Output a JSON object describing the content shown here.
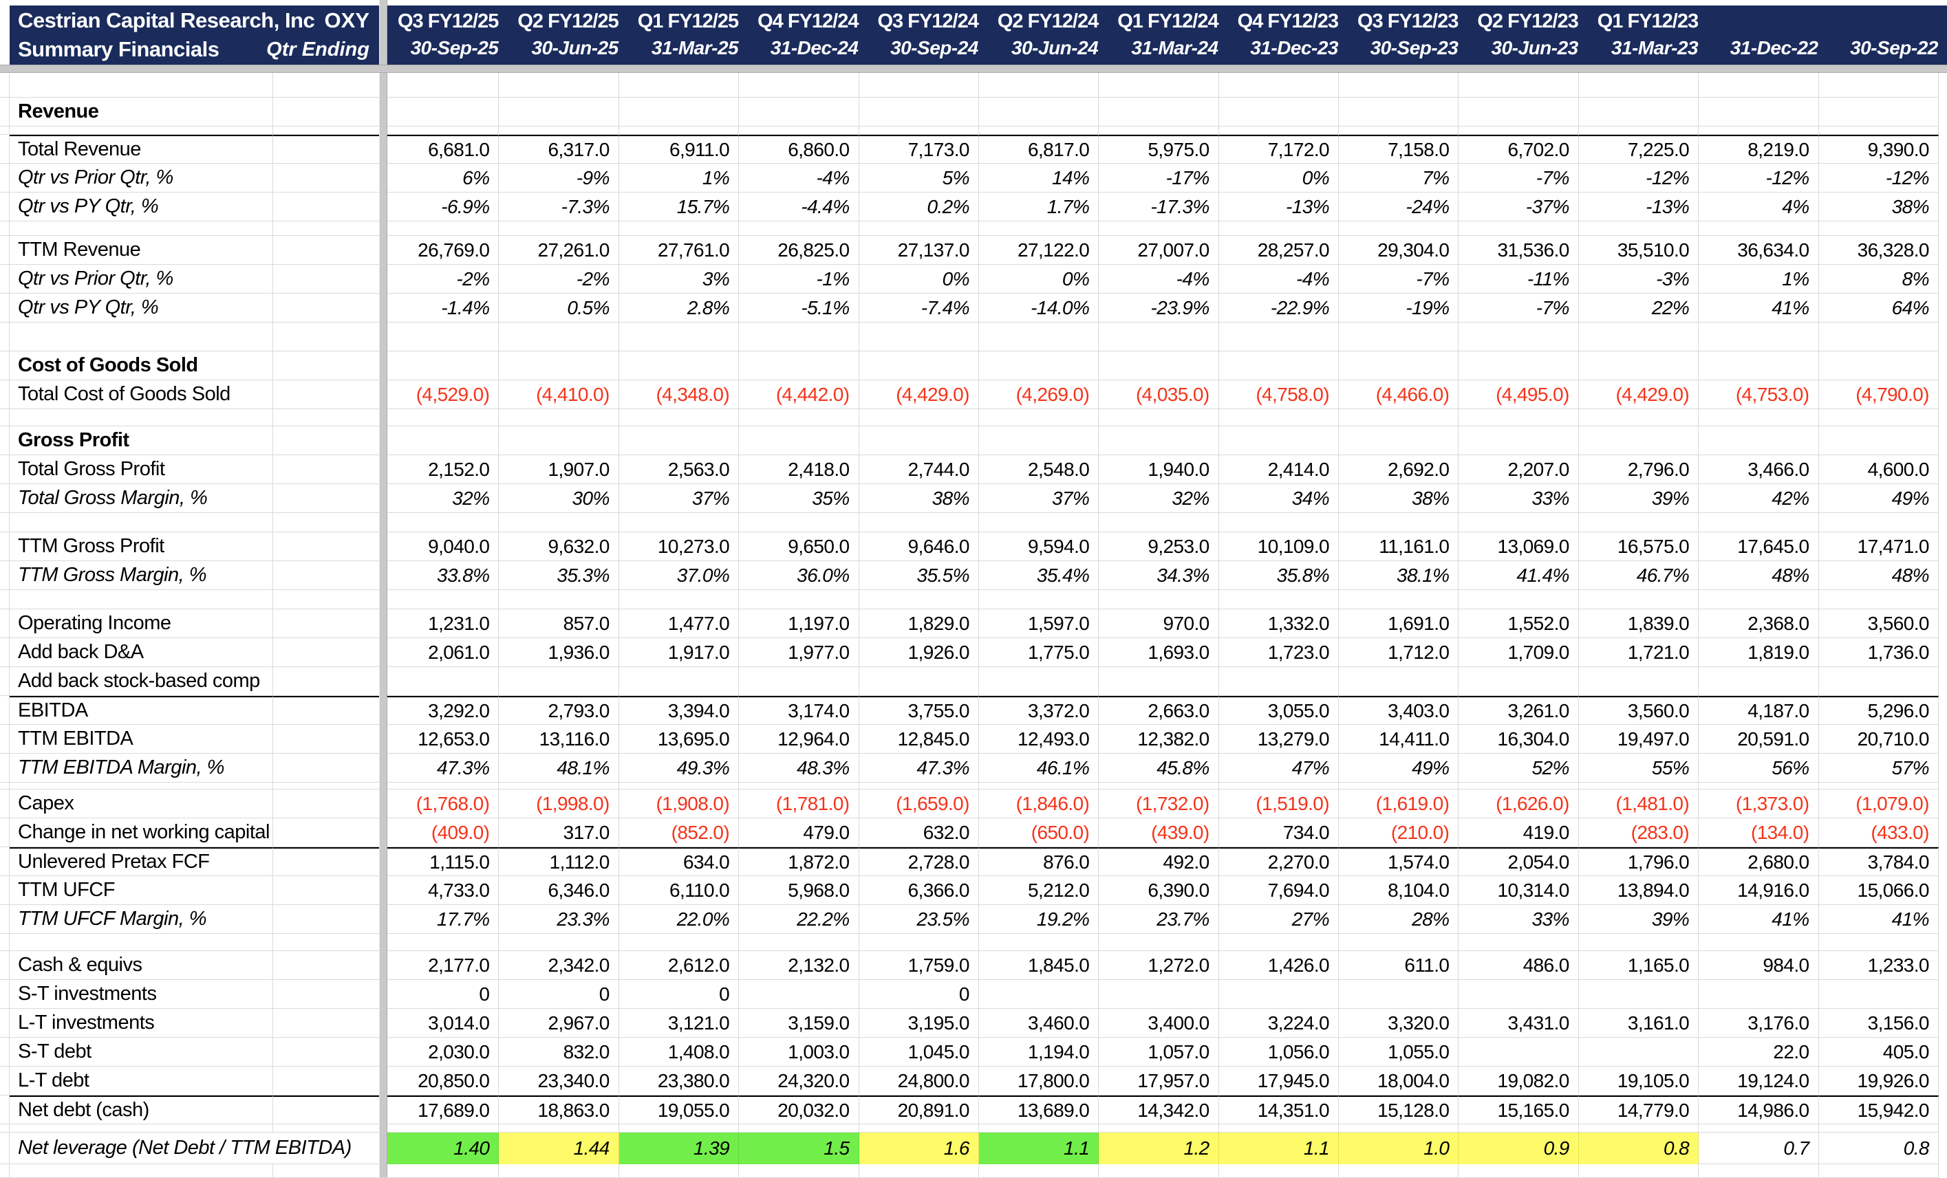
{
  "header": {
    "title": "Cestrian Capital Research, Inc",
    "subtitle": "Summary Financials",
    "ticker": "OXY",
    "qtr_ending_label": "Qtr Ending",
    "columns": [
      {
        "q": "Q3 FY12/25",
        "date": "30-Sep-25"
      },
      {
        "q": "Q2 FY12/25",
        "date": "30-Jun-25"
      },
      {
        "q": "Q1 FY12/25",
        "date": "31-Mar-25"
      },
      {
        "q": "Q4 FY12/24",
        "date": "31-Dec-24"
      },
      {
        "q": "Q3 FY12/24",
        "date": "30-Sep-24"
      },
      {
        "q": "Q2 FY12/24",
        "date": "30-Jun-24"
      },
      {
        "q": "Q1 FY12/24",
        "date": "31-Mar-24"
      },
      {
        "q": "Q4 FY12/23",
        "date": "31-Dec-23"
      },
      {
        "q": "Q3 FY12/23",
        "date": "30-Sep-23"
      },
      {
        "q": "Q2 FY12/23",
        "date": "30-Jun-23"
      },
      {
        "q": "Q1 FY12/23",
        "date": "31-Mar-23"
      },
      {
        "q": "",
        "date": "31-Dec-22"
      },
      {
        "q": "",
        "date": "30-Sep-22"
      }
    ]
  },
  "colors": {
    "header_bg": "#1A2B5C",
    "negative_red": "#F5331A",
    "fill_green": "#72EE4A",
    "fill_yellow": "#FDFB67",
    "gridline": "#DADADA",
    "pane_band": "#C9C9C9"
  },
  "rows": [
    {
      "type": "spacer",
      "h": 36
    },
    {
      "type": "section",
      "label": "Revenue"
    },
    {
      "type": "spacer",
      "h": 12
    },
    {
      "type": "data",
      "label": "Total Revenue",
      "bt": true,
      "values": [
        "6,681.0",
        "6,317.0",
        "6,911.0",
        "6,860.0",
        "7,173.0",
        "6,817.0",
        "5,975.0",
        "7,172.0",
        "7,158.0",
        "6,702.0",
        "7,225.0",
        "8,219.0",
        "9,390.0"
      ]
    },
    {
      "type": "data",
      "label": "Qtr vs Prior Qtr, %",
      "italic": true,
      "values": [
        "6%",
        "-9%",
        "1%",
        "-4%",
        "5%",
        "14%",
        "-17%",
        "0%",
        "7%",
        "-7%",
        "-12%",
        "-12%",
        "-12%"
      ]
    },
    {
      "type": "data",
      "label": "Qtr vs PY Qtr, %",
      "italic": true,
      "values": [
        "-6.9%",
        "-7.3%",
        "15.7%",
        "-4.4%",
        "0.2%",
        "1.7%",
        "-17.3%",
        "-13%",
        "-24%",
        "-37%",
        "-13%",
        "4%",
        "38%"
      ]
    },
    {
      "type": "spacer",
      "h": 21
    },
    {
      "type": "data",
      "label": "TTM Revenue",
      "values": [
        "26,769.0",
        "27,261.0",
        "27,761.0",
        "26,825.0",
        "27,137.0",
        "27,122.0",
        "27,007.0",
        "28,257.0",
        "29,304.0",
        "31,536.0",
        "35,510.0",
        "36,634.0",
        "36,328.0"
      ]
    },
    {
      "type": "data",
      "label": "Qtr vs Prior Qtr, %",
      "italic": true,
      "values": [
        "-2%",
        "-2%",
        "3%",
        "-1%",
        "0%",
        "0%",
        "-4%",
        "-4%",
        "-7%",
        "-11%",
        "-3%",
        "1%",
        "8%"
      ]
    },
    {
      "type": "data",
      "label": "Qtr vs PY Qtr, %",
      "italic": true,
      "values": [
        "-1.4%",
        "0.5%",
        "2.8%",
        "-5.1%",
        "-7.4%",
        "-14.0%",
        "-23.9%",
        "-22.9%",
        "-19%",
        "-7%",
        "22%",
        "41%",
        "64%"
      ]
    },
    {
      "type": "spacer",
      "h": 42
    },
    {
      "type": "section",
      "label": "Cost of Goods Sold"
    },
    {
      "type": "data",
      "label": "Total Cost of Goods Sold",
      "values": [
        "(4,529.0)",
        "(4,410.0)",
        "(4,348.0)",
        "(4,442.0)",
        "(4,429.0)",
        "(4,269.0)",
        "(4,035.0)",
        "(4,758.0)",
        "(4,466.0)",
        "(4,495.0)",
        "(4,429.0)",
        "(4,753.0)",
        "(4,790.0)"
      ]
    },
    {
      "type": "spacer",
      "h": 25
    },
    {
      "type": "section",
      "label": "Gross Profit"
    },
    {
      "type": "data",
      "label": "Total Gross Profit",
      "values": [
        "2,152.0",
        "1,907.0",
        "2,563.0",
        "2,418.0",
        "2,744.0",
        "2,548.0",
        "1,940.0",
        "2,414.0",
        "2,692.0",
        "2,207.0",
        "2,796.0",
        "3,466.0",
        "4,600.0"
      ]
    },
    {
      "type": "data",
      "label": "Total Gross Margin, %",
      "italic": true,
      "values": [
        "32%",
        "30%",
        "37%",
        "35%",
        "38%",
        "37%",
        "32%",
        "34%",
        "38%",
        "33%",
        "39%",
        "42%",
        "49%"
      ]
    },
    {
      "type": "spacer",
      "h": 28
    },
    {
      "type": "data",
      "label": "TTM Gross Profit",
      "values": [
        "9,040.0",
        "9,632.0",
        "10,273.0",
        "9,650.0",
        "9,646.0",
        "9,594.0",
        "9,253.0",
        "10,109.0",
        "11,161.0",
        "13,069.0",
        "16,575.0",
        "17,645.0",
        "17,471.0"
      ]
    },
    {
      "type": "data",
      "label": "TTM Gross Margin, %",
      "italic": true,
      "values": [
        "33.8%",
        "35.3%",
        "37.0%",
        "36.0%",
        "35.5%",
        "35.4%",
        "34.3%",
        "35.8%",
        "38.1%",
        "41.4%",
        "46.7%",
        "48%",
        "48%"
      ]
    },
    {
      "type": "spacer",
      "h": 28
    },
    {
      "type": "data",
      "label": "Operating Income",
      "values": [
        "1,231.0",
        "857.0",
        "1,477.0",
        "1,197.0",
        "1,829.0",
        "1,597.0",
        "970.0",
        "1,332.0",
        "1,691.0",
        "1,552.0",
        "1,839.0",
        "2,368.0",
        "3,560.0"
      ]
    },
    {
      "type": "data",
      "label": "Add back D&A",
      "values": [
        "2,061.0",
        "1,936.0",
        "1,917.0",
        "1,977.0",
        "1,926.0",
        "1,775.0",
        "1,693.0",
        "1,723.0",
        "1,712.0",
        "1,709.0",
        "1,721.0",
        "1,819.0",
        "1,736.0"
      ]
    },
    {
      "type": "data",
      "label": "Add back stock-based comp",
      "values": [
        "",
        "",
        "",
        "",
        "",
        "",
        "",
        "",
        "",
        "",
        "",
        "",
        ""
      ]
    },
    {
      "type": "data",
      "label": "EBITDA",
      "bt": true,
      "values": [
        "3,292.0",
        "2,793.0",
        "3,394.0",
        "3,174.0",
        "3,755.0",
        "3,372.0",
        "2,663.0",
        "3,055.0",
        "3,403.0",
        "3,261.0",
        "3,560.0",
        "4,187.0",
        "5,296.0"
      ]
    },
    {
      "type": "data",
      "label": "TTM EBITDA",
      "values": [
        "12,653.0",
        "13,116.0",
        "13,695.0",
        "12,964.0",
        "12,845.0",
        "12,493.0",
        "12,382.0",
        "13,279.0",
        "14,411.0",
        "16,304.0",
        "19,497.0",
        "20,591.0",
        "20,710.0"
      ]
    },
    {
      "type": "data",
      "label": "TTM EBITDA Margin, %",
      "italic": true,
      "values": [
        "47.3%",
        "48.1%",
        "49.3%",
        "48.3%",
        "47.3%",
        "46.1%",
        "45.8%",
        "47%",
        "49%",
        "52%",
        "55%",
        "56%",
        "57%"
      ]
    },
    {
      "type": "spacer",
      "h": 10
    },
    {
      "type": "data",
      "label": "Capex",
      "values": [
        "(1,768.0)",
        "(1,998.0)",
        "(1,908.0)",
        "(1,781.0)",
        "(1,659.0)",
        "(1,846.0)",
        "(1,732.0)",
        "(1,519.0)",
        "(1,619.0)",
        "(1,626.0)",
        "(1,481.0)",
        "(1,373.0)",
        "(1,079.0)"
      ]
    },
    {
      "type": "data",
      "label": "Change in net working capital",
      "values": [
        "(409.0)",
        "317.0",
        "(852.0)",
        "479.0",
        "632.0",
        "(650.0)",
        "(439.0)",
        "734.0",
        "(210.0)",
        "419.0",
        "(283.0)",
        "(134.0)",
        "(433.0)"
      ]
    },
    {
      "type": "data",
      "label": "Unlevered Pretax FCF",
      "bt": true,
      "values": [
        "1,115.0",
        "1,112.0",
        "634.0",
        "1,872.0",
        "2,728.0",
        "876.0",
        "492.0",
        "2,270.0",
        "1,574.0",
        "2,054.0",
        "1,796.0",
        "2,680.0",
        "3,784.0"
      ]
    },
    {
      "type": "data",
      "label": "TTM UFCF",
      "values": [
        "4,733.0",
        "6,346.0",
        "6,110.0",
        "5,968.0",
        "6,366.0",
        "5,212.0",
        "6,390.0",
        "7,694.0",
        "8,104.0",
        "10,314.0",
        "13,894.0",
        "14,916.0",
        "15,066.0"
      ]
    },
    {
      "type": "data",
      "label": "TTM UFCF Margin, %",
      "italic": true,
      "values": [
        "17.7%",
        "23.3%",
        "22.0%",
        "22.2%",
        "23.5%",
        "19.2%",
        "23.7%",
        "27%",
        "28%",
        "33%",
        "39%",
        "41%",
        "41%"
      ]
    },
    {
      "type": "spacer",
      "h": 25
    },
    {
      "type": "data",
      "label": "Cash & equivs",
      "values": [
        "2,177.0",
        "2,342.0",
        "2,612.0",
        "2,132.0",
        "1,759.0",
        "1,845.0",
        "1,272.0",
        "1,426.0",
        "611.0",
        "486.0",
        "1,165.0",
        "984.0",
        "1,233.0"
      ]
    },
    {
      "type": "data",
      "label": "S-T investments",
      "values": [
        "0",
        "0",
        "0",
        "",
        "0",
        "",
        "",
        "",
        "",
        "",
        "",
        "",
        ""
      ]
    },
    {
      "type": "data",
      "label": "L-T investments",
      "values": [
        "3,014.0",
        "2,967.0",
        "3,121.0",
        "3,159.0",
        "3,195.0",
        "3,460.0",
        "3,400.0",
        "3,224.0",
        "3,320.0",
        "3,431.0",
        "3,161.0",
        "3,176.0",
        "3,156.0"
      ]
    },
    {
      "type": "data",
      "label": "S-T debt",
      "values": [
        "2,030.0",
        "832.0",
        "1,408.0",
        "1,003.0",
        "1,045.0",
        "1,194.0",
        "1,057.0",
        "1,056.0",
        "1,055.0",
        "",
        "",
        "22.0",
        "405.0"
      ]
    },
    {
      "type": "data",
      "label": "L-T debt",
      "values": [
        "20,850.0",
        "23,340.0",
        "23,380.0",
        "24,320.0",
        "24,800.0",
        "17,800.0",
        "17,957.0",
        "17,945.0",
        "18,004.0",
        "19,082.0",
        "19,105.0",
        "19,124.0",
        "19,926.0"
      ]
    },
    {
      "type": "data",
      "label": "Net debt (cash)",
      "bt": true,
      "values": [
        "17,689.0",
        "18,863.0",
        "19,055.0",
        "20,032.0",
        "20,891.0",
        "13,689.0",
        "14,342.0",
        "14,351.0",
        "15,128.0",
        "15,165.0",
        "14,779.0",
        "14,986.0",
        "15,942.0"
      ]
    },
    {
      "type": "spacer",
      "h": 12
    },
    {
      "type": "data",
      "label": "Net leverage (Net Debt / TTM EBITDA)",
      "italic": true,
      "wide": true,
      "h": 46,
      "values": [
        "1.40",
        "1.44",
        "1.39",
        "1.5",
        "1.6",
        "1.1",
        "1.2",
        "1.1",
        "1.0",
        "0.9",
        "0.8",
        "0.7",
        "0.8"
      ],
      "fills": [
        "green",
        "yellow",
        "green",
        "green",
        "yellow",
        "green",
        "yellow",
        "yellow",
        "yellow",
        "yellow",
        "yellow",
        "none",
        "none"
      ]
    },
    {
      "type": "spacer",
      "h": 20
    }
  ]
}
